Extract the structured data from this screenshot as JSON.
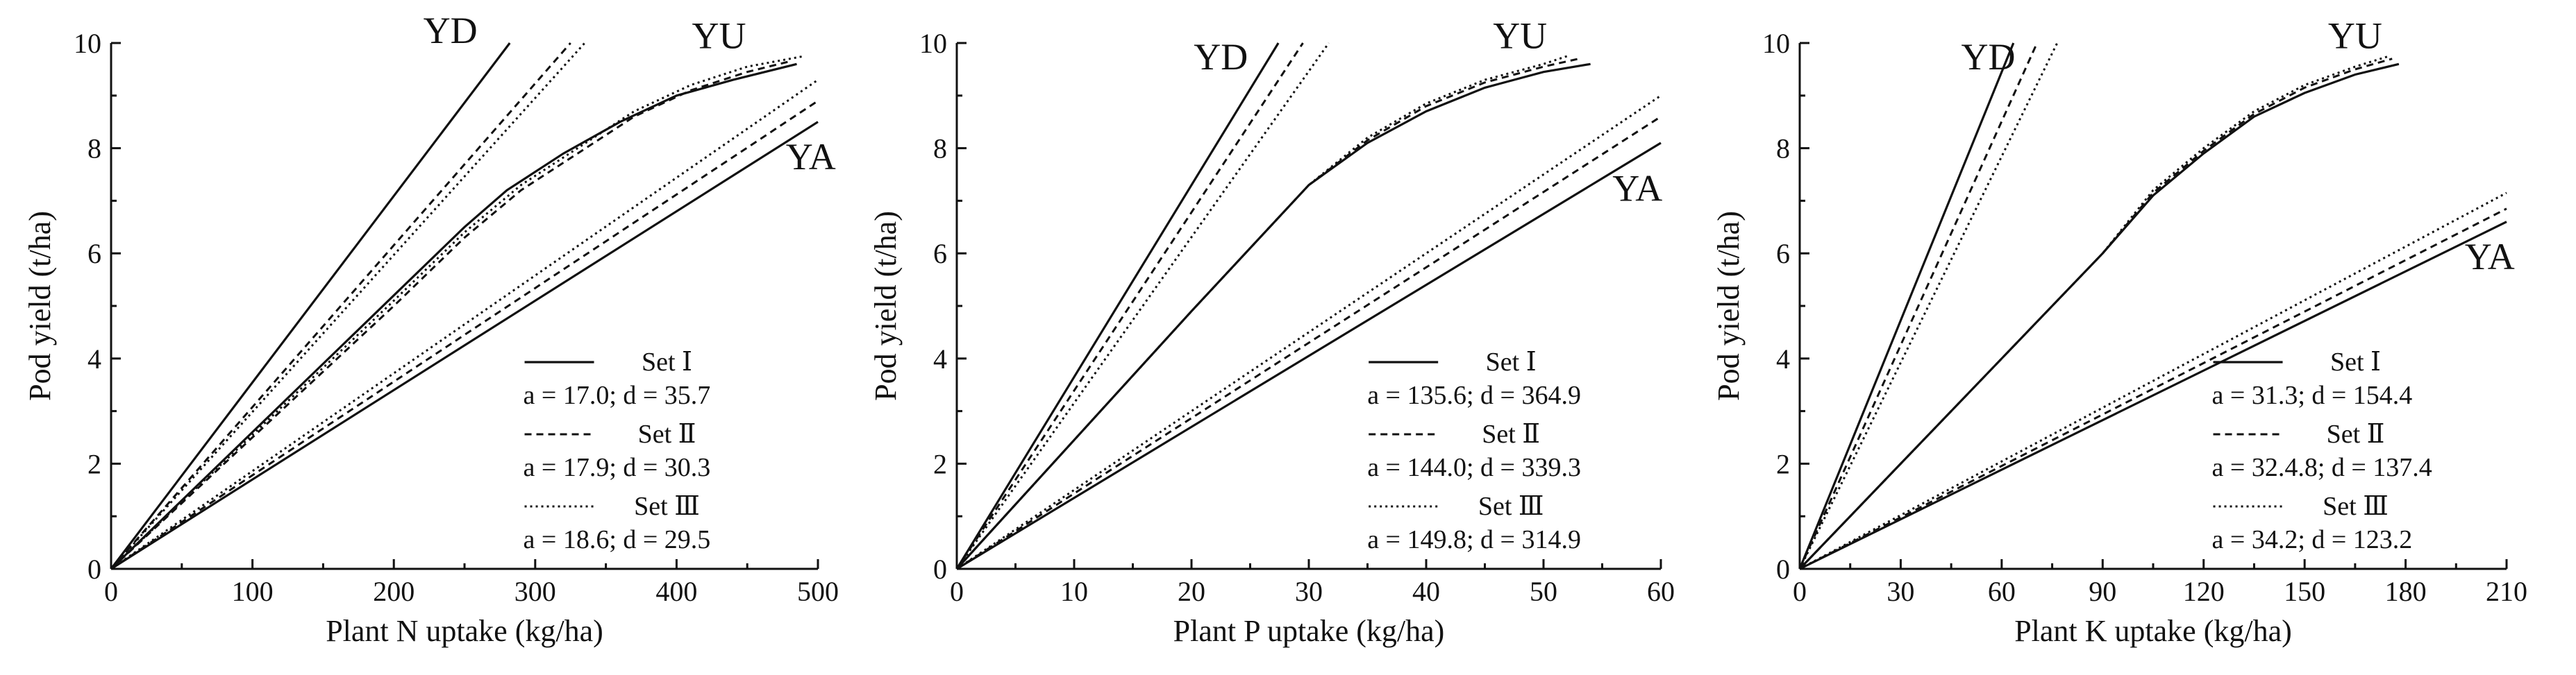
{
  "figure": {
    "chart_data": [
      {
        "type": "line",
        "xlabel": "Plant N uptake (kg/ha)",
        "ylabel": "Pod yield (t/ha)",
        "xlim": [
          0,
          500
        ],
        "ylim": [
          0,
          10
        ],
        "xticks": [
          "0",
          "100",
          "200",
          "300",
          "400",
          "500"
        ],
        "yticks": [
          "0",
          "2",
          "4",
          "6",
          "8",
          "10"
        ],
        "curve_labels": [
          {
            "text": "YD",
            "x": 240,
            "y": 10.0
          },
          {
            "text": "YU",
            "x": 430,
            "y": 9.9
          },
          {
            "text": "YA",
            "x": 495,
            "y": 7.6
          }
        ],
        "legend": {
          "position": "bottom-right",
          "entries": [
            {
              "name": "Set Ⅰ",
              "params": "a = 17.0; d = 35.7"
            },
            {
              "name": "Set Ⅱ",
              "params": "a = 17.9; d = 30.3"
            },
            {
              "name": "Set Ⅲ",
              "params": "a = 18.6; d = 29.5"
            }
          ]
        },
        "series": [
          {
            "set": "Set Ⅰ",
            "curve": "YD",
            "style": "solid",
            "points": [
              [
                0,
                0
              ],
              [
                282,
                10
              ]
            ]
          },
          {
            "set": "Set Ⅱ",
            "curve": "YD",
            "style": "dashed",
            "points": [
              [
                0,
                0
              ],
              [
                325,
                10
              ]
            ]
          },
          {
            "set": "Set Ⅲ",
            "curve": "YD",
            "style": "dotted",
            "points": [
              [
                0,
                0
              ],
              [
                335,
                10
              ]
            ]
          },
          {
            "set": "Set Ⅰ",
            "curve": "YU",
            "style": "solid",
            "points": [
              [
                0,
                0
              ],
              [
                100,
                2.6
              ],
              [
                200,
                5.2
              ],
              [
                250,
                6.5
              ],
              [
                280,
                7.2
              ],
              [
                320,
                7.9
              ],
              [
                360,
                8.5
              ],
              [
                400,
                9.0
              ],
              [
                440,
                9.3
              ],
              [
                485,
                9.6
              ]
            ]
          },
          {
            "set": "Set Ⅱ",
            "curve": "YU",
            "style": "dashed",
            "points": [
              [
                0,
                0
              ],
              [
                100,
                2.5
              ],
              [
                200,
                5.0
              ],
              [
                250,
                6.3
              ],
              [
                290,
                7.2
              ],
              [
                330,
                7.9
              ],
              [
                370,
                8.6
              ],
              [
                410,
                9.1
              ],
              [
                450,
                9.45
              ],
              [
                480,
                9.65
              ]
            ]
          },
          {
            "set": "Set Ⅲ",
            "curve": "YU",
            "style": "dotted",
            "points": [
              [
                0,
                0
              ],
              [
                100,
                2.55
              ],
              [
                200,
                5.1
              ],
              [
                250,
                6.4
              ],
              [
                290,
                7.3
              ],
              [
                330,
                8.0
              ],
              [
                370,
                8.7
              ],
              [
                410,
                9.2
              ],
              [
                450,
                9.55
              ],
              [
                490,
                9.75
              ]
            ]
          },
          {
            "set": "Set Ⅰ",
            "curve": "YA",
            "style": "solid",
            "points": [
              [
                0,
                0
              ],
              [
                500,
                8.5
              ]
            ]
          },
          {
            "set": "Set Ⅱ",
            "curve": "YA",
            "style": "dashed",
            "points": [
              [
                0,
                0
              ],
              [
                500,
                8.9
              ]
            ]
          },
          {
            "set": "Set Ⅲ",
            "curve": "YA",
            "style": "dotted",
            "points": [
              [
                0,
                0
              ],
              [
                500,
                9.3
              ]
            ]
          }
        ]
      },
      {
        "type": "line",
        "xlabel": "Plant P uptake (kg/ha)",
        "ylabel": "Pod yield (t/ha)",
        "xlim": [
          0,
          60
        ],
        "ylim": [
          0,
          10
        ],
        "xticks": [
          "0",
          "10",
          "20",
          "30",
          "40",
          "50",
          "60"
        ],
        "yticks": [
          "0",
          "2",
          "4",
          "6",
          "8",
          "10"
        ],
        "curve_labels": [
          {
            "text": "YD",
            "x": 22.5,
            "y": 9.5
          },
          {
            "text": "YU",
            "x": 48,
            "y": 9.9
          },
          {
            "text": "YA",
            "x": 58,
            "y": 7.0
          }
        ],
        "legend": {
          "position": "bottom-right",
          "entries": [
            {
              "name": "Set Ⅰ",
              "params": "a = 135.6; d = 364.9"
            },
            {
              "name": "Set Ⅱ",
              "params": "a = 144.0; d = 339.3"
            },
            {
              "name": "Set Ⅲ",
              "params": "a = 149.8; d = 314.9"
            }
          ]
        },
        "series": [
          {
            "set": "Set Ⅰ",
            "curve": "YD",
            "style": "solid",
            "points": [
              [
                0,
                0
              ],
              [
                27.4,
                10
              ]
            ]
          },
          {
            "set": "Set Ⅱ",
            "curve": "YD",
            "style": "dashed",
            "points": [
              [
                0,
                0
              ],
              [
                29.5,
                10
              ]
            ]
          },
          {
            "set": "Set Ⅲ",
            "curve": "YD",
            "style": "dotted",
            "points": [
              [
                0,
                0
              ],
              [
                31.7,
                10
              ]
            ]
          },
          {
            "set": "Set Ⅰ",
            "curve": "YU",
            "style": "solid",
            "points": [
              [
                0,
                0
              ],
              [
                10,
                2.45
              ],
              [
                20,
                4.9
              ],
              [
                30,
                7.3
              ],
              [
                35,
                8.1
              ],
              [
                40,
                8.7
              ],
              [
                45,
                9.15
              ],
              [
                50,
                9.45
              ],
              [
                54,
                9.6
              ]
            ]
          },
          {
            "set": "Set Ⅱ",
            "curve": "YU",
            "style": "dashed",
            "points": [
              [
                0,
                0
              ],
              [
                10,
                2.45
              ],
              [
                20,
                4.9
              ],
              [
                30,
                7.3
              ],
              [
                35,
                8.15
              ],
              [
                40,
                8.8
              ],
              [
                45,
                9.25
              ],
              [
                50,
                9.55
              ],
              [
                53,
                9.7
              ]
            ]
          },
          {
            "set": "Set Ⅲ",
            "curve": "YU",
            "style": "dotted",
            "points": [
              [
                0,
                0
              ],
              [
                10,
                2.45
              ],
              [
                20,
                4.9
              ],
              [
                30,
                7.3
              ],
              [
                35,
                8.2
              ],
              [
                40,
                8.85
              ],
              [
                45,
                9.3
              ],
              [
                50,
                9.6
              ],
              [
                52,
                9.75
              ]
            ]
          },
          {
            "set": "Set Ⅰ",
            "curve": "YA",
            "style": "solid",
            "points": [
              [
                0,
                0
              ],
              [
                60,
                8.1
              ]
            ]
          },
          {
            "set": "Set Ⅱ",
            "curve": "YA",
            "style": "dashed",
            "points": [
              [
                0,
                0
              ],
              [
                60,
                8.6
              ]
            ]
          },
          {
            "set": "Set Ⅲ",
            "curve": "YA",
            "style": "dotted",
            "points": [
              [
                0,
                0
              ],
              [
                60,
                9.0
              ]
            ]
          }
        ]
      },
      {
        "type": "line",
        "xlabel": "Plant K uptake (kg/ha)",
        "ylabel": "Pod yield (t/ha)",
        "xlim": [
          0,
          210
        ],
        "ylim": [
          0,
          10
        ],
        "xticks": [
          "0",
          "30",
          "60",
          "90",
          "120",
          "150",
          "180",
          "210"
        ],
        "yticks": [
          "0",
          "2",
          "4",
          "6",
          "8",
          "10"
        ],
        "curve_labels": [
          {
            "text": "YD",
            "x": 56,
            "y": 9.5
          },
          {
            "text": "YU",
            "x": 165,
            "y": 9.9
          },
          {
            "text": "YA",
            "x": 205,
            "y": 5.7
          }
        ],
        "legend": {
          "position": "bottom-right",
          "entries": [
            {
              "name": "Set Ⅰ",
              "params": "a = 31.3; d = 154.4"
            },
            {
              "name": "Set Ⅱ",
              "params": "a = 32.4.8; d = 137.4"
            },
            {
              "name": "Set Ⅲ",
              "params": "a = 34.2; d = 123.2"
            }
          ]
        },
        "series": [
          {
            "set": "Set Ⅰ",
            "curve": "YD",
            "style": "solid",
            "points": [
              [
                0,
                0
              ],
              [
                63.5,
                10
              ]
            ]
          },
          {
            "set": "Set Ⅱ",
            "curve": "YD",
            "style": "dashed",
            "points": [
              [
                0,
                0
              ],
              [
                70.5,
                10
              ]
            ]
          },
          {
            "set": "Set Ⅲ",
            "curve": "YD",
            "style": "dotted",
            "points": [
              [
                0,
                0
              ],
              [
                76.5,
                10
              ]
            ]
          },
          {
            "set": "Set Ⅰ",
            "curve": "YU",
            "style": "solid",
            "points": [
              [
                0,
                0
              ],
              [
                30,
                2.0
              ],
              [
                60,
                4.0
              ],
              [
                90,
                6.0
              ],
              [
                105,
                7.1
              ],
              [
                120,
                7.9
              ],
              [
                135,
                8.6
              ],
              [
                150,
                9.05
              ],
              [
                165,
                9.4
              ],
              [
                178,
                9.6
              ]
            ]
          },
          {
            "set": "Set Ⅱ",
            "curve": "YU",
            "style": "dashed",
            "points": [
              [
                0,
                0
              ],
              [
                30,
                2.0
              ],
              [
                60,
                4.0
              ],
              [
                90,
                6.0
              ],
              [
                105,
                7.15
              ],
              [
                120,
                7.95
              ],
              [
                135,
                8.65
              ],
              [
                150,
                9.15
              ],
              [
                165,
                9.5
              ],
              [
                176,
                9.7
              ]
            ]
          },
          {
            "set": "Set Ⅲ",
            "curve": "YU",
            "style": "dotted",
            "points": [
              [
                0,
                0
              ],
              [
                30,
                2.0
              ],
              [
                60,
                4.0
              ],
              [
                90,
                6.0
              ],
              [
                105,
                7.2
              ],
              [
                120,
                8.0
              ],
              [
                135,
                8.7
              ],
              [
                150,
                9.2
              ],
              [
                165,
                9.55
              ],
              [
                175,
                9.75
              ]
            ]
          },
          {
            "set": "Set Ⅰ",
            "curve": "YA",
            "style": "solid",
            "points": [
              [
                0,
                0
              ],
              [
                210,
                6.6
              ]
            ]
          },
          {
            "set": "Set Ⅱ",
            "curve": "YA",
            "style": "dashed",
            "points": [
              [
                0,
                0
              ],
              [
                210,
                6.85
              ]
            ]
          },
          {
            "set": "Set Ⅲ",
            "curve": "YA",
            "style": "dotted",
            "points": [
              [
                0,
                0
              ],
              [
                210,
                7.15
              ]
            ]
          }
        ]
      }
    ]
  }
}
